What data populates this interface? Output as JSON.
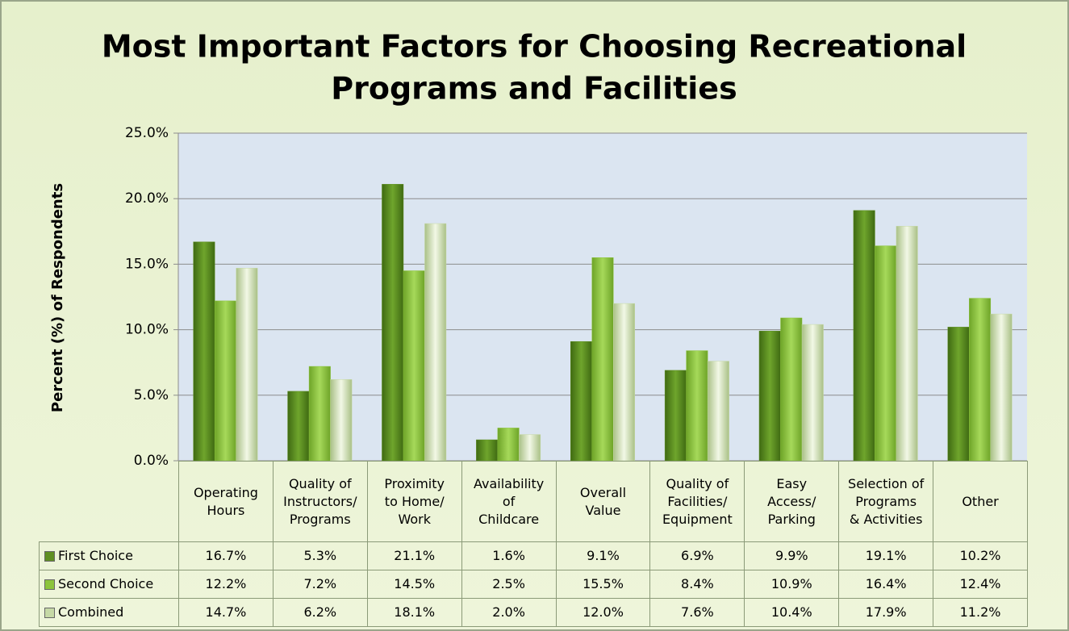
{
  "chart_data": {
    "type": "bar",
    "title": [
      "Most Important Factors for Choosing Recreational",
      "Programs and Facilities"
    ],
    "y_label": "Percent (%) of Respondents",
    "categories": [
      "Operating\nHours",
      "Quality of\nInstructors/\nPrograms",
      "Proximity\nto Home/\nWork",
      "Availability\nof\nChildcare",
      "Overall\nValue",
      "Quality of\nFacilities/\nEquipment",
      "Easy\nAccess/\nParking",
      "Selection of\nPrograms\n& Activities",
      "Other"
    ],
    "series": [
      {
        "name": "First Choice",
        "color": "#5f8f22",
        "values": [
          16.7,
          5.3,
          21.1,
          1.6,
          9.1,
          6.9,
          9.9,
          19.1,
          10.2
        ],
        "value_labels": [
          "16.7%",
          "5.3%",
          "21.1%",
          "1.6%",
          "9.1%",
          "6.9%",
          "9.9%",
          "19.1%",
          "10.2%"
        ]
      },
      {
        "name": "Second Choice",
        "color": "#8cc43c",
        "values": [
          12.2,
          7.2,
          14.5,
          2.5,
          15.5,
          8.4,
          10.9,
          16.4,
          12.4
        ],
        "value_labels": [
          "12.2%",
          "7.2%",
          "14.5%",
          "2.5%",
          "15.5%",
          "8.4%",
          "10.9%",
          "16.4%",
          "12.4%"
        ]
      },
      {
        "name": "Combined",
        "color": "#c6d9a6",
        "values": [
          14.7,
          6.2,
          18.1,
          2.0,
          12.0,
          7.6,
          10.4,
          17.9,
          11.2
        ],
        "value_labels": [
          "14.7%",
          "6.2%",
          "18.1%",
          "2.0%",
          "12.0%",
          "7.6%",
          "10.4%",
          "17.9%",
          "11.2%"
        ]
      }
    ],
    "ylim": [
      0,
      25
    ],
    "yticks": [
      {
        "value": 0,
        "label": "0.0%"
      },
      {
        "value": 5,
        "label": "5.0%"
      },
      {
        "value": 10,
        "label": "10.0%"
      },
      {
        "value": 15,
        "label": "15.0%"
      },
      {
        "value": 20,
        "label": "20.0%"
      },
      {
        "value": 25,
        "label": "25.0%"
      }
    ],
    "grid": true
  }
}
